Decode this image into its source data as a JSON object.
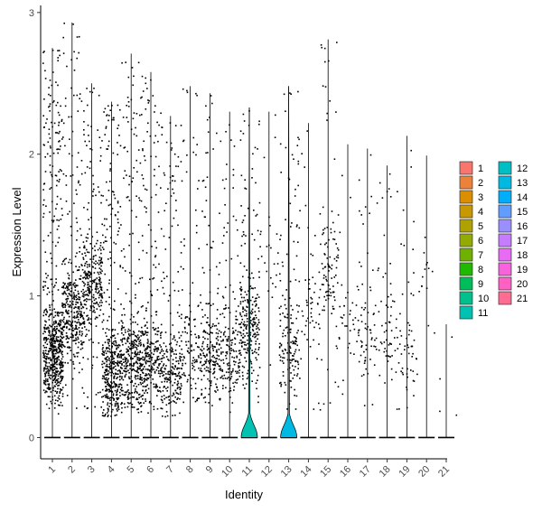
{
  "chart_data": {
    "type": "violin",
    "title": "",
    "xlabel": "Identity",
    "ylabel": "Expression Level",
    "ylim": [
      -0.15,
      3.05
    ],
    "y_ticks": [
      0,
      1,
      2,
      3
    ],
    "categories": [
      "1",
      "2",
      "3",
      "4",
      "5",
      "6",
      "7",
      "8",
      "9",
      "10",
      "11",
      "12",
      "13",
      "14",
      "15",
      "16",
      "17",
      "18",
      "19",
      "20",
      "21"
    ],
    "series": [
      {
        "name": "1",
        "color": "#F8766D",
        "max": 2.75,
        "zero_fraction": 0.5,
        "nonzero_center": 0.6,
        "point_count": 650
      },
      {
        "name": "2",
        "color": "#EC8239",
        "max": 2.93,
        "zero_fraction": 0.55,
        "nonzero_center": 0.9,
        "point_count": 360
      },
      {
        "name": "3",
        "color": "#DB8E00",
        "max": 2.5,
        "zero_fraction": 0.55,
        "nonzero_center": 1.1,
        "point_count": 320
      },
      {
        "name": "4",
        "color": "#C79800",
        "max": 2.37,
        "zero_fraction": 0.55,
        "nonzero_center": 0.45,
        "point_count": 440
      },
      {
        "name": "5",
        "color": "#AFA100",
        "max": 2.71,
        "zero_fraction": 0.55,
        "nonzero_center": 0.55,
        "point_count": 350
      },
      {
        "name": "6",
        "color": "#93AA00",
        "max": 2.58,
        "zero_fraction": 0.55,
        "nonzero_center": 0.55,
        "point_count": 300
      },
      {
        "name": "7",
        "color": "#6FB000",
        "max": 2.27,
        "zero_fraction": 0.55,
        "nonzero_center": 0.45,
        "point_count": 230
      },
      {
        "name": "8",
        "color": "#21B800",
        "max": 2.48,
        "zero_fraction": 0.6,
        "nonzero_center": 0.65,
        "point_count": 130
      },
      {
        "name": "9",
        "color": "#00BD5C",
        "max": 2.43,
        "zero_fraction": 0.6,
        "nonzero_center": 0.6,
        "point_count": 200
      },
      {
        "name": "10",
        "color": "#00C08D",
        "max": 2.3,
        "zero_fraction": 0.6,
        "nonzero_center": 0.6,
        "point_count": 170
      },
      {
        "name": "11",
        "color": "#00C1B2",
        "max": 2.33,
        "zero_fraction": 0.85,
        "nonzero_center": 0.8,
        "point_count": 260
      },
      {
        "name": "12",
        "color": "#00BFC4",
        "max": 2.3,
        "zero_fraction": 0.7,
        "nonzero_center": 1.3,
        "point_count": 25
      },
      {
        "name": "13",
        "color": "#00B9E3",
        "max": 2.48,
        "zero_fraction": 0.85,
        "nonzero_center": 0.65,
        "point_count": 170
      },
      {
        "name": "14",
        "color": "#00ADFA",
        "max": 2.22,
        "zero_fraction": 0.65,
        "nonzero_center": 0.9,
        "point_count": 50
      },
      {
        "name": "15",
        "color": "#619CFF",
        "max": 2.81,
        "zero_fraction": 0.65,
        "nonzero_center": 1.2,
        "point_count": 110
      },
      {
        "name": "16",
        "color": "#9B8EFF",
        "max": 2.07,
        "zero_fraction": 0.7,
        "nonzero_center": 0.8,
        "point_count": 35
      },
      {
        "name": "17",
        "color": "#C77CFF",
        "max": 2.04,
        "zero_fraction": 0.65,
        "nonzero_center": 0.7,
        "point_count": 70
      },
      {
        "name": "18",
        "color": "#E76BF3",
        "max": 1.92,
        "zero_fraction": 0.65,
        "nonzero_center": 0.75,
        "point_count": 60
      },
      {
        "name": "19",
        "color": "#F962DD",
        "max": 2.13,
        "zero_fraction": 0.7,
        "nonzero_center": 0.55,
        "point_count": 55
      },
      {
        "name": "20",
        "color": "#FF61C3",
        "max": 1.99,
        "zero_fraction": 0.75,
        "nonzero_center": 1.2,
        "point_count": 14
      },
      {
        "name": "21",
        "color": "#FF6C91",
        "max": 0.8,
        "zero_fraction": 0.9,
        "nonzero_center": 0.45,
        "point_count": 4
      }
    ],
    "violin_highlight": [
      {
        "category": "11",
        "peak_height": 0.17,
        "tail_top": 2.33
      },
      {
        "category": "13",
        "peak_height": 0.17,
        "tail_top": 2.48
      }
    ],
    "grid": false,
    "legend": {
      "position": "right",
      "columns": 2
    }
  }
}
